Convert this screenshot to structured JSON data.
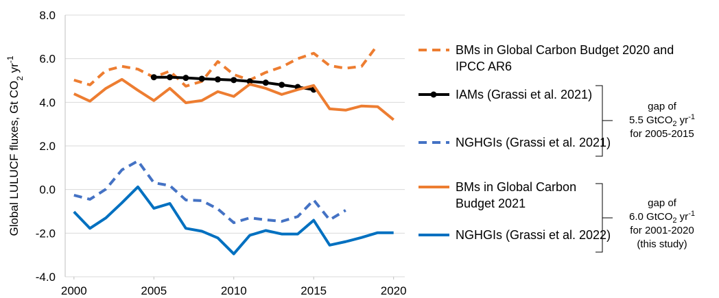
{
  "chart_data": {
    "type": "line",
    "y_label": [
      "Global LULUCF fluxes, Gt CO",
      "2",
      " yr",
      "-1"
    ],
    "x": [
      2000,
      2001,
      2002,
      2003,
      2004,
      2005,
      2006,
      2007,
      2008,
      2009,
      2010,
      2011,
      2012,
      2013,
      2014,
      2015,
      2016,
      2017,
      2018,
      2019,
      2020
    ],
    "xlim": [
      1999.45,
      2020.7
    ],
    "xticks": [
      2000,
      2005,
      2010,
      2015,
      2020
    ],
    "ylim": [
      -4,
      8
    ],
    "yticks": [
      {
        "value": -4,
        "label": "-4.0"
      },
      {
        "value": -2,
        "label": "-2.0"
      },
      {
        "value": 0,
        "label": "0.0"
      },
      {
        "value": 2,
        "label": "2.0"
      },
      {
        "value": 4,
        "label": "4.0"
      },
      {
        "value": 6,
        "label": "6.0"
      },
      {
        "value": 8,
        "label": "8.0"
      }
    ],
    "grid": true,
    "series": [
      {
        "name": "BMs in Global Carbon Budget 2020 and IPCC AR6",
        "color": "#ed7d31",
        "dashed": true,
        "markers": false,
        "values": [
          5.02,
          4.8,
          5.46,
          5.65,
          5.52,
          5.15,
          5.43,
          4.74,
          4.96,
          5.87,
          5.27,
          5.02,
          5.37,
          5.62,
          6.0,
          6.25,
          5.68,
          5.56,
          5.65,
          6.63,
          null
        ]
      },
      {
        "name": "IAMs (Grassi et al. 2021)",
        "color": "#000000",
        "dashed": false,
        "markers": true,
        "values": [
          null,
          null,
          null,
          null,
          null,
          5.15,
          5.15,
          5.12,
          5.08,
          5.05,
          5.02,
          4.96,
          4.9,
          4.8,
          4.7,
          4.58,
          null,
          null,
          null,
          null,
          null
        ]
      },
      {
        "name": "NGHGIs (Grassi et al. 2021)",
        "color": "#4472c4",
        "dashed": true,
        "markers": false,
        "values": [
          -0.26,
          -0.45,
          0.02,
          0.9,
          1.31,
          0.31,
          0.18,
          -0.48,
          -0.51,
          -0.89,
          -1.52,
          -1.3,
          -1.39,
          -1.46,
          -1.24,
          -0.48,
          -1.39,
          -0.95,
          null,
          null,
          null
        ]
      },
      {
        "name": "BMs in Global Carbon Budget 2021",
        "color": "#ed7d31",
        "dashed": false,
        "markers": false,
        "values": [
          4.39,
          4.05,
          4.64,
          5.05,
          4.55,
          4.08,
          4.64,
          3.98,
          4.08,
          4.49,
          4.27,
          4.83,
          4.64,
          4.36,
          4.58,
          4.77,
          3.7,
          3.64,
          3.83,
          3.8,
          3.2
        ]
      },
      {
        "name": "NGHGIs (Grassi et al. 2022)",
        "color": "#0070c0",
        "dashed": false,
        "markers": false,
        "values": [
          -1.02,
          -1.78,
          -1.3,
          -0.61,
          0.12,
          -0.86,
          -0.64,
          -1.78,
          -1.91,
          -2.22,
          -2.95,
          -2.1,
          -1.88,
          -2.04,
          -2.04,
          -1.41,
          -2.55,
          -2.39,
          -2.2,
          -1.98,
          -1.98
        ]
      }
    ],
    "annotations": [
      [
        [
          "gap of"
        ],
        [
          "5.5 GtCO",
          "2",
          " yr",
          "-1"
        ],
        [
          "for 2005-2015"
        ]
      ],
      [
        [
          "gap of"
        ],
        [
          "6.0 GtCO",
          "2",
          " yr",
          "-1"
        ],
        [
          "for 2001-2020"
        ],
        [
          "(this study)"
        ]
      ]
    ]
  }
}
